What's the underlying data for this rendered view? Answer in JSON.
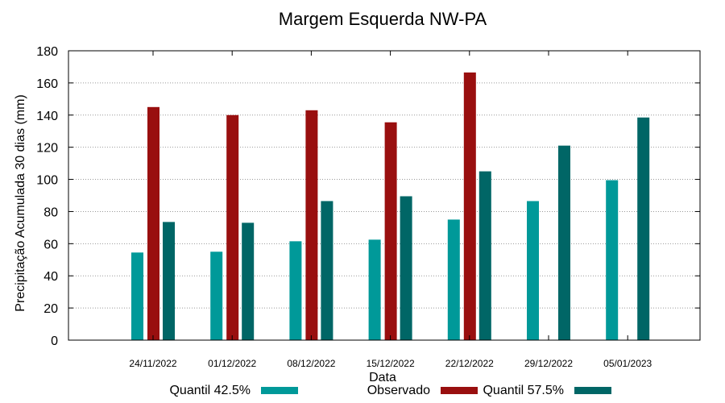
{
  "chart_data": {
    "type": "bar",
    "title": "Margem Esquerda NW-PA",
    "xlabel": "Data",
    "ylabel": "Precipitação Acumulada 30 dias (mm)",
    "ylim": [
      0,
      180
    ],
    "yticks": [
      0,
      20,
      40,
      60,
      80,
      100,
      120,
      140,
      160,
      180
    ],
    "grid": true,
    "legend_position": "bottom",
    "categories": [
      "24/11/2022",
      "01/12/2022",
      "08/12/2022",
      "15/12/2022",
      "22/12/2022",
      "29/12/2022",
      "05/01/2023"
    ],
    "series": [
      {
        "name": "Quantil 42.5%",
        "color": "#009999",
        "values": [
          54.5,
          55,
          61.5,
          62.5,
          75,
          86.5,
          99.5
        ]
      },
      {
        "name": "Observado",
        "color": "#990f0f",
        "values": [
          145,
          140,
          143,
          135.5,
          166.5,
          null,
          null
        ]
      },
      {
        "name": "Quantil 57.5%",
        "color": "#006666",
        "values": [
          73.5,
          73,
          86.5,
          89.5,
          105,
          121,
          138.5
        ]
      }
    ]
  }
}
